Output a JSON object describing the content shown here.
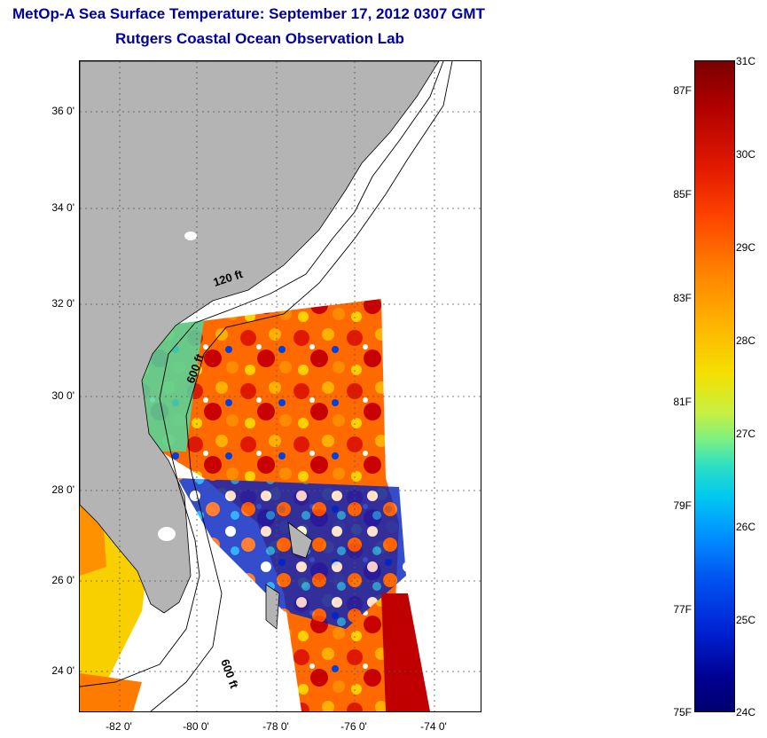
{
  "header": {
    "title": "MetOp-A Sea Surface Temperature:  September 17, 2012 0307 GMT",
    "subtitle": "Rutgers Coastal Ocean Observation Lab"
  },
  "map": {
    "lat_labels": [
      "36 0'",
      "34 0'",
      "32 0'",
      "30 0'",
      "28 0'",
      "26 0'",
      "24 0'"
    ],
    "lon_labels": [
      "-82 0'",
      "-80 0'",
      "-78 0'",
      "-76 0'",
      "-74 0'"
    ],
    "isobath_labels": [
      "120 ft",
      "600 ft",
      "600 ft"
    ],
    "land_color": "#b4b4b4",
    "ocean_color": "#ffffff"
  },
  "colorbar": {
    "fahrenheit_labels": [
      "87F",
      "85F",
      "83F",
      "81F",
      "79F",
      "77F",
      "75F"
    ],
    "celsius_labels": [
      "31C",
      "30C",
      "29C",
      "28C",
      "27C",
      "26C",
      "25C",
      "24C"
    ],
    "range_c": [
      24,
      31
    ]
  }
}
